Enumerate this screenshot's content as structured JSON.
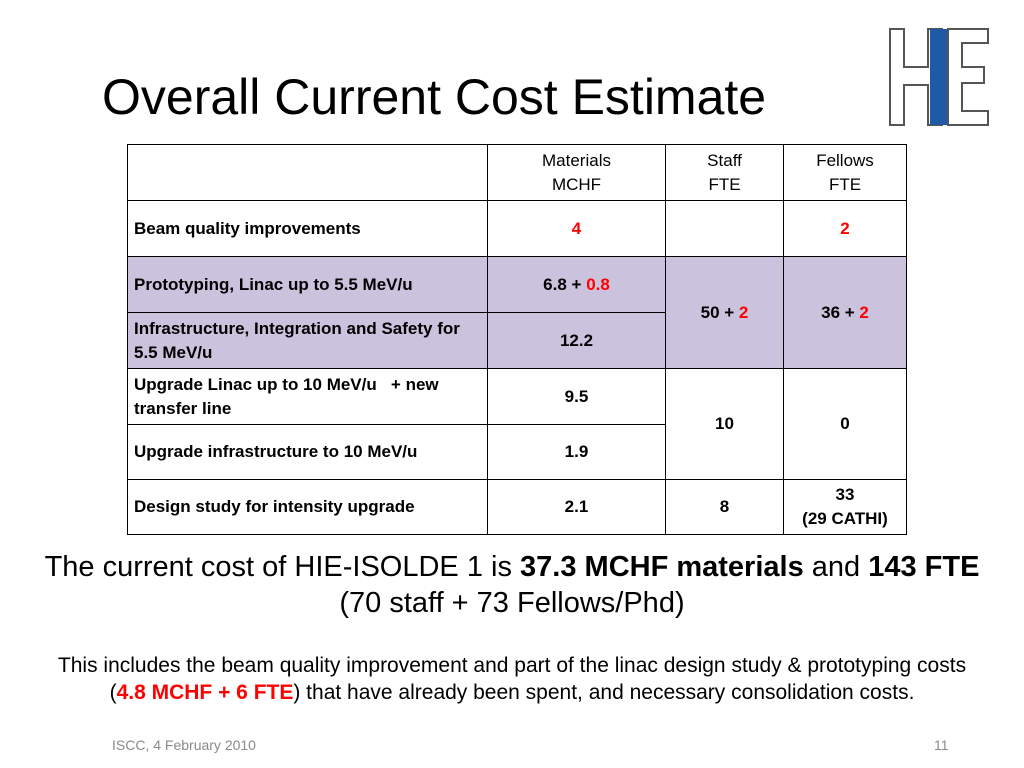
{
  "slide": {
    "title": "Overall Current Cost Estimate",
    "logo_text": "HIE",
    "colors": {
      "highlight_row": "#cbc3de",
      "red_values": "#ff0000",
      "logo_blue": "#1f5aa6",
      "footer_text": "#8a8a8a"
    }
  },
  "table": {
    "headers": [
      {
        "line1": "",
        "line2": ""
      },
      {
        "line1": "Materials",
        "line2": "MCHF"
      },
      {
        "line1": "Staff",
        "line2": "FTE"
      },
      {
        "line1": "Fellows",
        "line2": "FTE"
      }
    ],
    "rows": [
      {
        "label": "Beam quality improvements",
        "materials": "",
        "materials_red": "4",
        "staff": "",
        "staff_red": "",
        "fellows": "",
        "fellows_red": "2"
      },
      {
        "label": "Prototyping, Linac up to 5.5 MeV/u",
        "materials": "6.8 + ",
        "materials_red": "0.8",
        "staff": "50 + ",
        "staff_red": "2",
        "fellows": "36 + ",
        "fellows_red": "2",
        "highlight": true
      },
      {
        "label": "Infrastructure, Integration and Safety for 5.5 MeV/u",
        "materials": "12.2",
        "highlight": true
      },
      {
        "label": "Upgrade Linac up to 10 MeV/u   + new transfer line",
        "materials": "9.5",
        "staff": "10",
        "fellows": "0"
      },
      {
        "label": "Upgrade infrastructure to 10 MeV/u",
        "materials": "1.9"
      },
      {
        "label": "Design study for intensity upgrade",
        "materials": "2.1",
        "staff": "8",
        "fellows_line1": "33",
        "fellows_line2": "(29 CATHI)"
      }
    ]
  },
  "summary": {
    "prefix": "The current cost of HIE-ISOLDE 1 is ",
    "bold_materials": "37.3 MCHF materials",
    "and": " and ",
    "bold_fte": "143 FTE",
    "suffix": " (70 staff + 73 Fellows/Phd)"
  },
  "note": {
    "prefix": "This includes the beam quality improvement and part of the linac design study & prototyping costs (",
    "red_text": "4.8 MCHF + 6 FTE",
    "suffix": ") that have already been spent, and necessary consolidation costs."
  },
  "footer": {
    "left": "ISCC, 4 February 2010",
    "page_number": "11"
  }
}
